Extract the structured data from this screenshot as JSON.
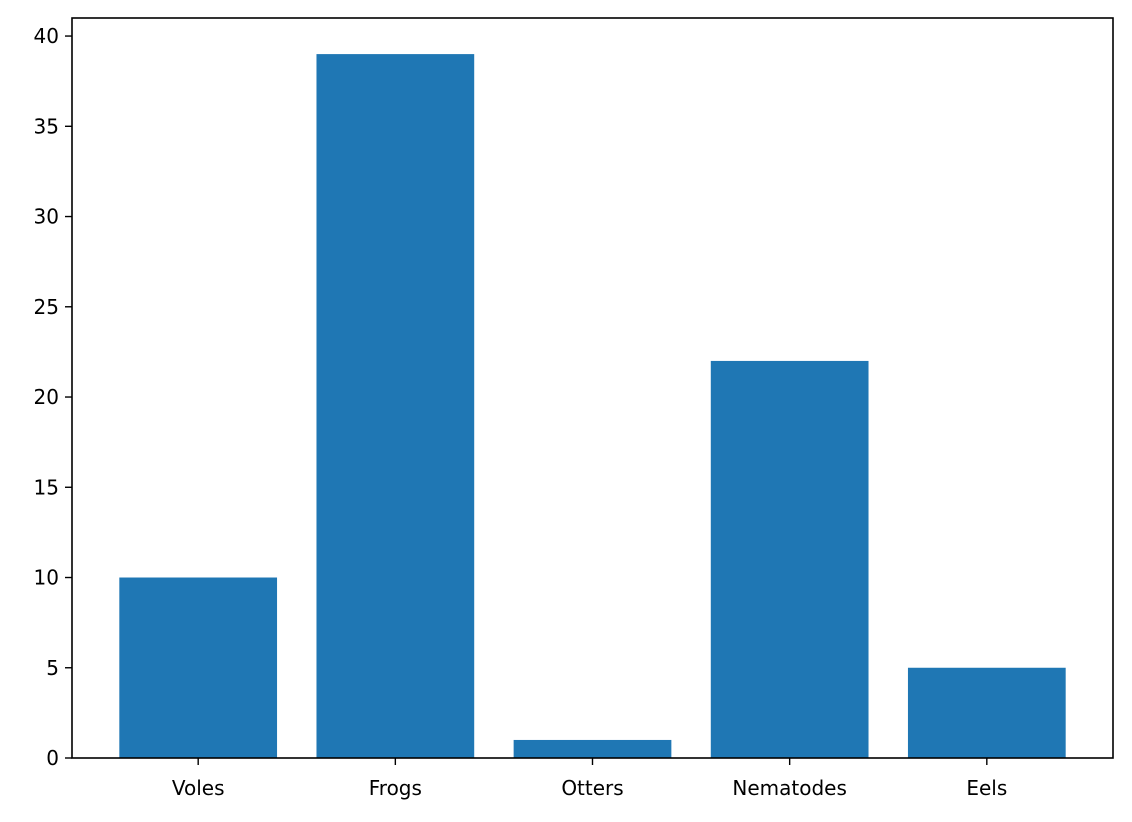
{
  "chart_data": {
    "type": "bar",
    "categories": [
      "Voles",
      "Frogs",
      "Otters",
      "Nematodes",
      "Eels"
    ],
    "values": [
      10,
      39,
      1,
      22,
      5
    ],
    "title": "",
    "xlabel": "",
    "ylabel": "",
    "ylim": [
      0,
      41
    ],
    "yticks": [
      0,
      5,
      10,
      15,
      20,
      25,
      30,
      35,
      40
    ],
    "grid": false,
    "bar_color": "#1f77b4"
  }
}
